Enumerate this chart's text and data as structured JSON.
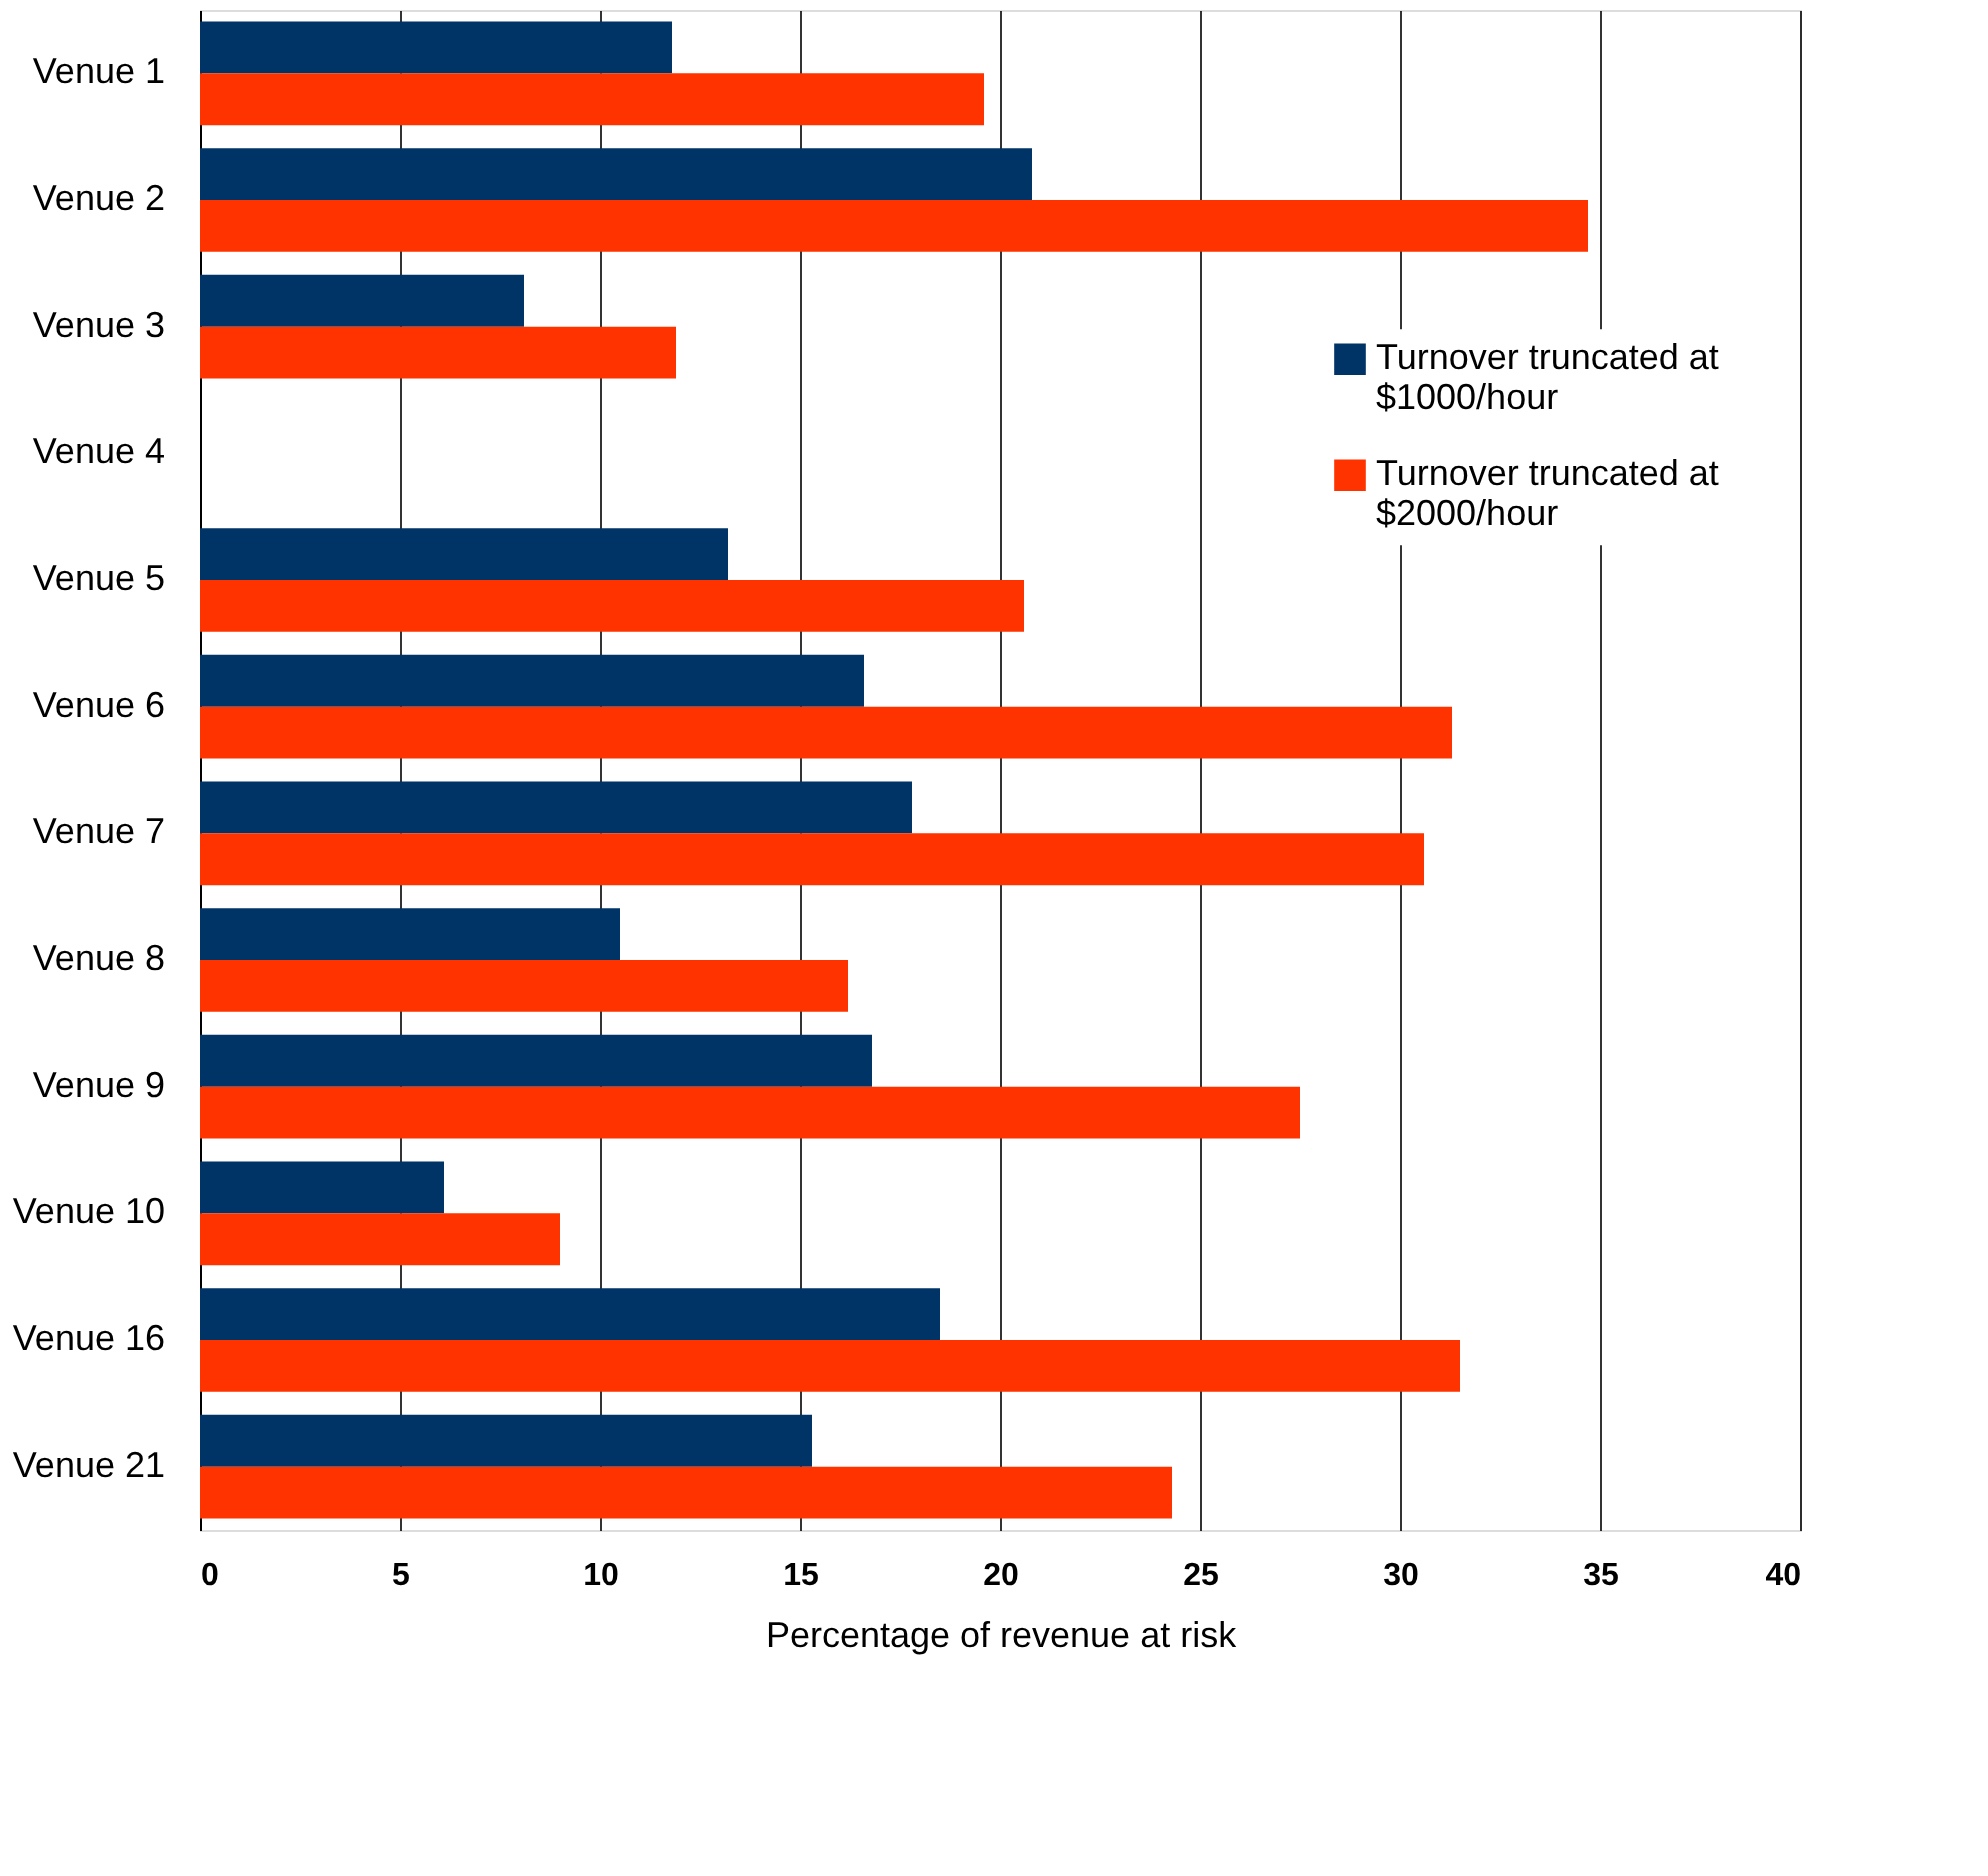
{
  "chart_data": {
    "type": "bar",
    "orientation": "horizontal",
    "xlabel": "Percentage of revenue at risk",
    "categories": [
      "Venue 1",
      "Venue 2",
      "Venue 3",
      "Venue 4",
      "Venue 5",
      "Venue 6",
      "Venue 7",
      "Venue 8",
      "Venue 9",
      "Venue 10",
      "Venue 16",
      "Venue 21"
    ],
    "series": [
      {
        "name": "Turnover truncated at $1000/hour",
        "color": "#003366",
        "values": [
          11.8,
          20.8,
          8.1,
          null,
          13.2,
          16.6,
          17.8,
          10.5,
          16.8,
          6.1,
          18.5,
          15.3
        ]
      },
      {
        "name": "Turnover truncated at $2000/hour",
        "color": "#ff3300",
        "values": [
          19.6,
          34.7,
          11.9,
          null,
          20.6,
          31.3,
          30.6,
          16.2,
          27.5,
          9.0,
          31.5,
          24.3
        ]
      }
    ],
    "xlim": [
      0,
      40
    ],
    "xticks": [
      0,
      5,
      10,
      15,
      20,
      25,
      30,
      35,
      40
    ],
    "grid": "x",
    "legend": "top right"
  }
}
